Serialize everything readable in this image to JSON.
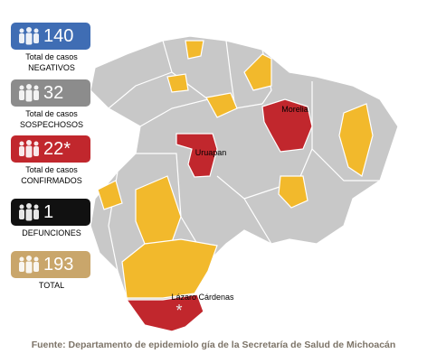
{
  "stats": [
    {
      "value": 140,
      "label": "Total de casos",
      "sublabel": "NEGATIVOS",
      "color": "#3f6db4"
    },
    {
      "value": 32,
      "label": "Total de casos",
      "sublabel": "SOSPECHOSOS",
      "color": "#8c8c8c"
    },
    {
      "value": "22*",
      "label": "Total de casos",
      "sublabel": "CONFIRMADOS",
      "color": "#c1272d"
    },
    {
      "value": 1,
      "label": "DEFUNCIONES",
      "color": "#111111"
    },
    {
      "value": 193,
      "label": "TOTAL",
      "color": "#c9a66b"
    }
  ],
  "map": {
    "labels": [
      "Morelia",
      "Uruapan",
      "Lázaro Cárdenas"
    ],
    "marker": "*"
  },
  "footer": "Fuente: Departamento de epidemiolo gía de la Secretaría de Salud de Michoacán"
}
